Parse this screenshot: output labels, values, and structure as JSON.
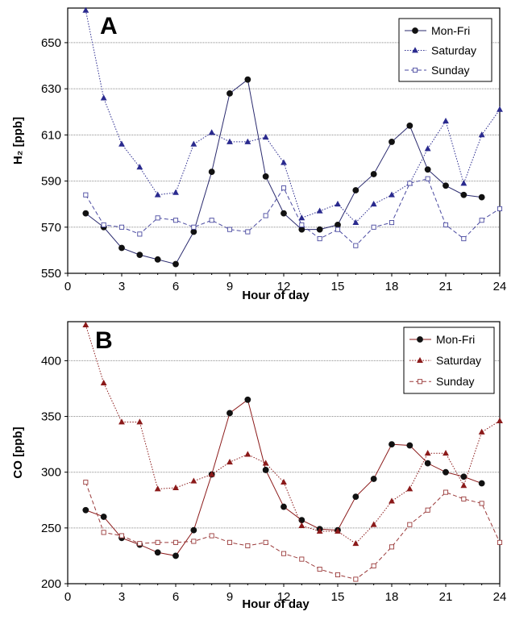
{
  "chart_data": [
    {
      "type": "line",
      "panel_label": "A",
      "xlabel": "Hour of day",
      "ylabel": "H₂ [ppb]",
      "xlim": [
        0,
        24
      ],
      "ylim": [
        550,
        665
      ],
      "xticks": [
        0,
        3,
        6,
        9,
        12,
        15,
        18,
        21,
        24
      ],
      "yticks": [
        550,
        570,
        590,
        610,
        630,
        650
      ],
      "grid": "horizontal dotted",
      "legend": "top-right",
      "series": [
        {
          "name": "Mon-Fri",
          "style": "solid",
          "marker": "circle-filled",
          "color": "#2a2a6e",
          "x": [
            1,
            2,
            3,
            4,
            5,
            6,
            7,
            8,
            9,
            10,
            11,
            12,
            13,
            14,
            15,
            16,
            17,
            18,
            19,
            20,
            21,
            22,
            23
          ],
          "values": [
            576,
            570,
            561,
            558,
            556,
            554,
            568,
            594,
            628,
            634,
            592,
            576,
            569,
            569,
            571,
            586,
            593,
            607,
            614,
            595,
            588,
            584,
            583
          ]
        },
        {
          "name": "Saturday",
          "style": "dotted",
          "marker": "triangle-filled",
          "color": "#2a2a8e",
          "x": [
            1,
            2,
            3,
            4,
            5,
            6,
            7,
            8,
            9,
            10,
            11,
            12,
            13,
            14,
            15,
            16,
            17,
            18,
            19,
            20,
            21,
            22,
            23,
            24
          ],
          "values": [
            664,
            626,
            606,
            596,
            584,
            585,
            606,
            611,
            607,
            607,
            609,
            598,
            574,
            577,
            580,
            572,
            580,
            584,
            589,
            604,
            616,
            589,
            610,
            621
          ]
        },
        {
          "name": "Sunday",
          "style": "dashed",
          "marker": "square-open",
          "color": "#4a4aa0",
          "x": [
            1,
            2,
            3,
            4,
            5,
            6,
            7,
            8,
            9,
            10,
            11,
            12,
            13,
            14,
            15,
            16,
            17,
            18,
            19,
            20,
            21,
            22,
            23,
            24
          ],
          "values": [
            584,
            571,
            570,
            567,
            574,
            573,
            570,
            573,
            569,
            568,
            575,
            587,
            571,
            565,
            569,
            562,
            570,
            572,
            589,
            591,
            571,
            565,
            573,
            578
          ]
        }
      ]
    },
    {
      "type": "line",
      "panel_label": "B",
      "xlabel": "Hour of day",
      "ylabel": "CO [ppb]",
      "xlim": [
        0,
        24
      ],
      "ylim": [
        200,
        435
      ],
      "xticks": [
        0,
        3,
        6,
        9,
        12,
        15,
        18,
        21,
        24
      ],
      "yticks": [
        200,
        250,
        300,
        350,
        400
      ],
      "grid": "horizontal dotted",
      "legend": "top-right",
      "series": [
        {
          "name": "Mon-Fri",
          "style": "solid",
          "marker": "circle-filled",
          "color": "#8b1a1a",
          "x": [
            1,
            2,
            3,
            4,
            5,
            6,
            7,
            8,
            9,
            10,
            11,
            12,
            13,
            14,
            15,
            16,
            17,
            18,
            19,
            20,
            21,
            22,
            23
          ],
          "values": [
            266,
            260,
            241,
            235,
            228,
            225,
            248,
            298,
            353,
            365,
            302,
            269,
            257,
            249,
            248,
            278,
            294,
            325,
            324,
            308,
            300,
            296,
            290
          ]
        },
        {
          "name": "Saturday",
          "style": "dotted",
          "marker": "triangle-filled",
          "color": "#8b1a1a",
          "x": [
            1,
            2,
            3,
            4,
            5,
            6,
            7,
            8,
            9,
            10,
            11,
            12,
            13,
            14,
            15,
            16,
            17,
            18,
            19,
            20,
            21,
            22,
            23,
            24
          ],
          "values": [
            432,
            380,
            345,
            345,
            285,
            286,
            292,
            298,
            309,
            316,
            308,
            291,
            252,
            247,
            247,
            236,
            253,
            274,
            285,
            317,
            317,
            288,
            336,
            346
          ]
        },
        {
          "name": "Sunday",
          "style": "dashed",
          "marker": "square-open",
          "color": "#9a3a3a",
          "x": [
            1,
            2,
            3,
            4,
            5,
            6,
            7,
            8,
            9,
            10,
            11,
            12,
            13,
            14,
            15,
            16,
            17,
            18,
            19,
            20,
            21,
            22,
            23,
            24
          ],
          "values": [
            291,
            246,
            243,
            236,
            237,
            237,
            238,
            243,
            237,
            234,
            237,
            227,
            222,
            213,
            208,
            204,
            216,
            233,
            253,
            266,
            282,
            276,
            272,
            237
          ]
        }
      ]
    }
  ]
}
